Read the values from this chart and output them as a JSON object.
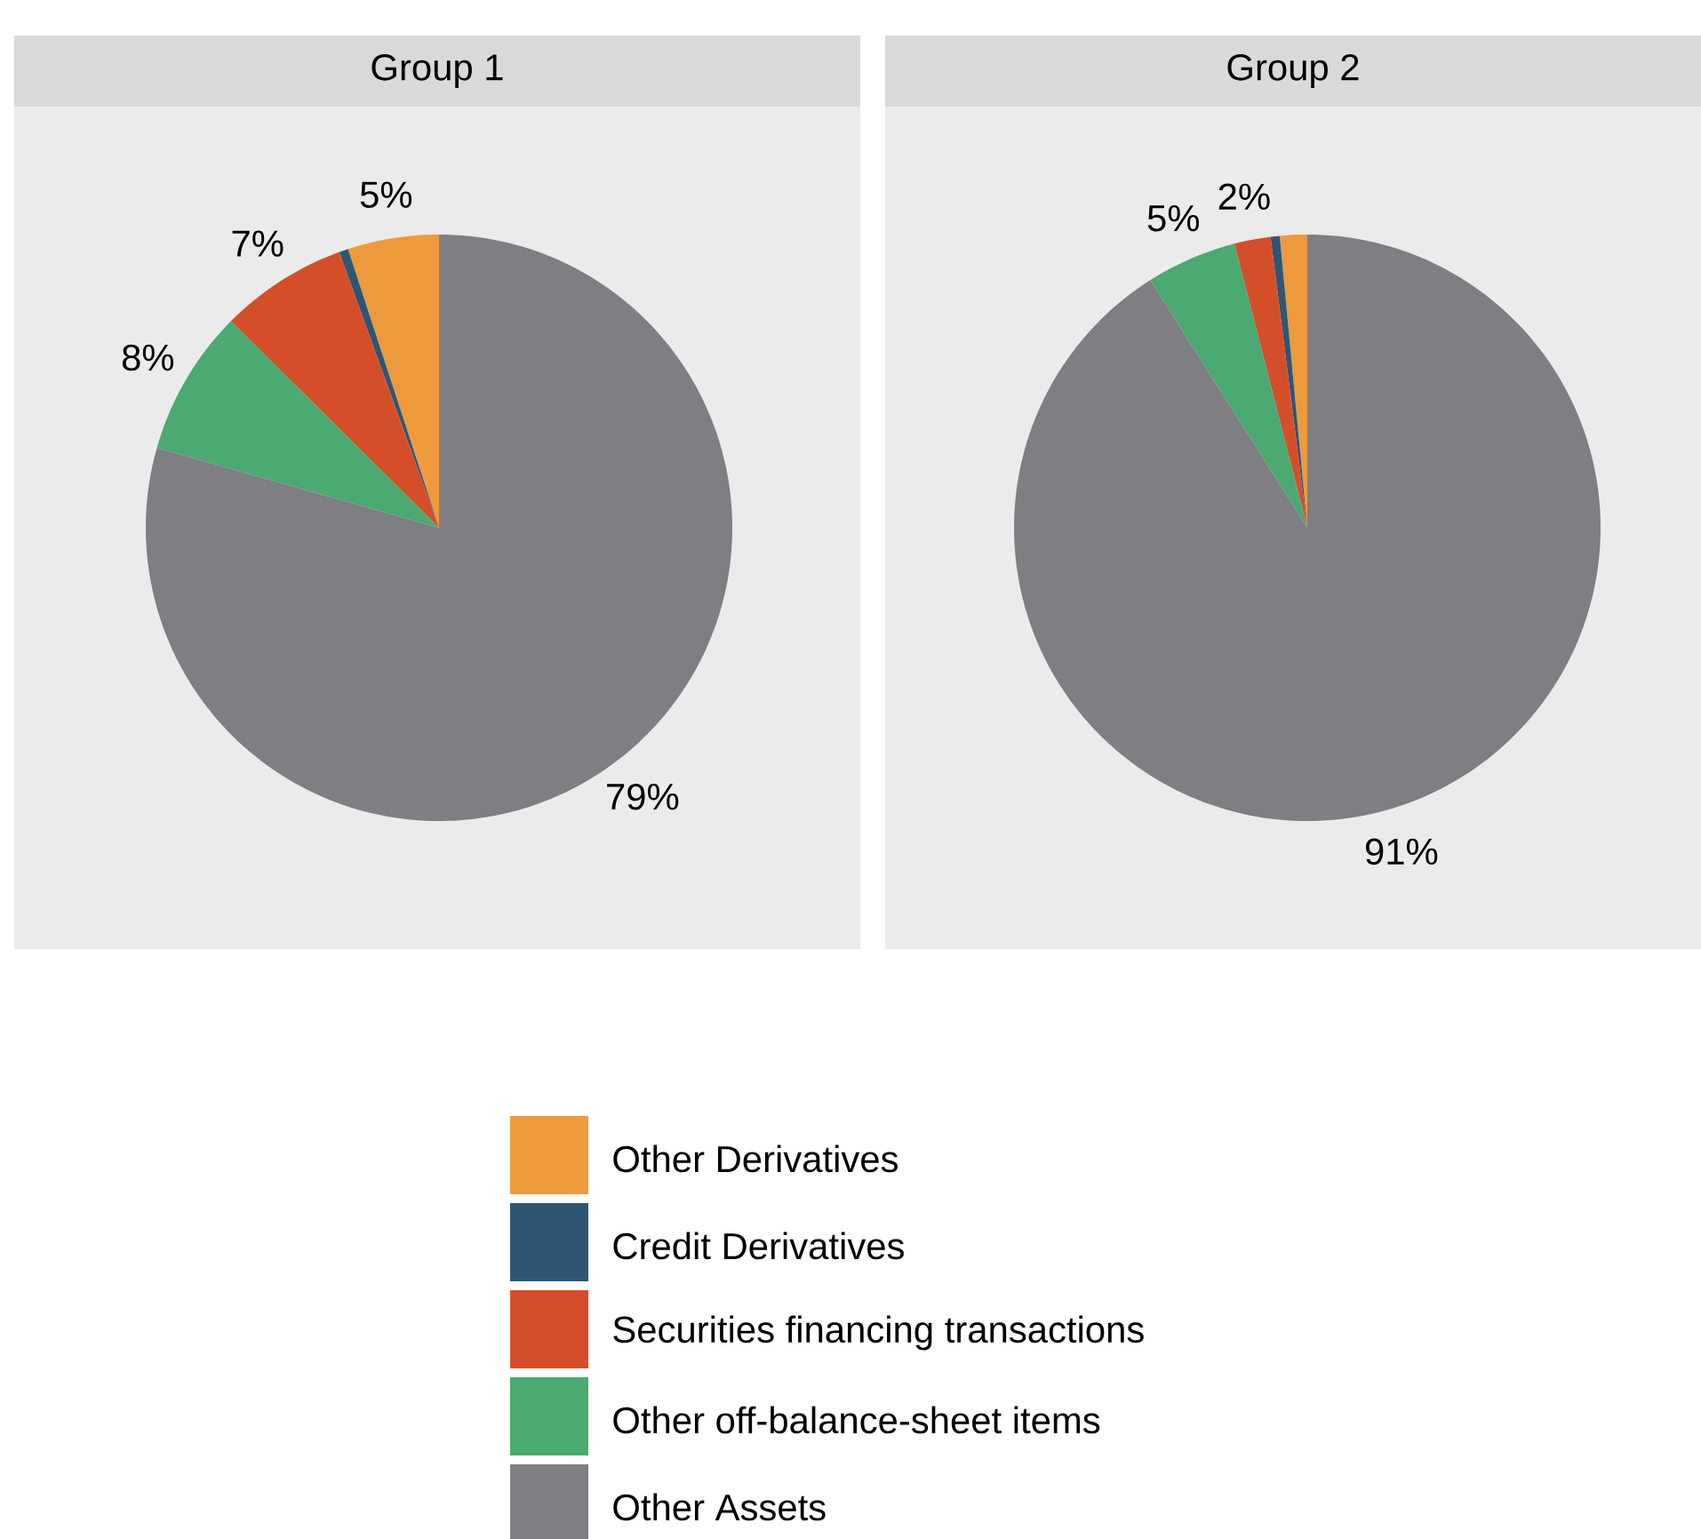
{
  "chart_data": [
    {
      "type": "pie",
      "title": "Group 1",
      "categories": [
        "Other Derivatives",
        "Credit Derivatives",
        "Securities financing transactions",
        "Other off-balance-sheet items",
        "Other Assets"
      ],
      "values": [
        5,
        0.5,
        7,
        8,
        79
      ],
      "colors": [
        "#ed9a3c",
        "#2e5673",
        "#d54e2a",
        "#4baa72",
        "#7f7e83"
      ],
      "value_labels": [
        "5%",
        null,
        "7%",
        "8%",
        "79%"
      ],
      "legend": "bottom"
    },
    {
      "type": "pie",
      "title": "Group 2",
      "categories": [
        null,
        null,
        null,
        null,
        null
      ],
      "values": [
        1.5,
        0.5,
        2,
        5,
        91
      ],
      "colors": [
        "#ed9a3c",
        "#2e5673",
        "#d54e2a",
        "#4baa72",
        "#7f7e83"
      ],
      "value_labels": [
        null,
        null,
        "2%",
        "5%",
        "91%"
      ]
    }
  ]
}
